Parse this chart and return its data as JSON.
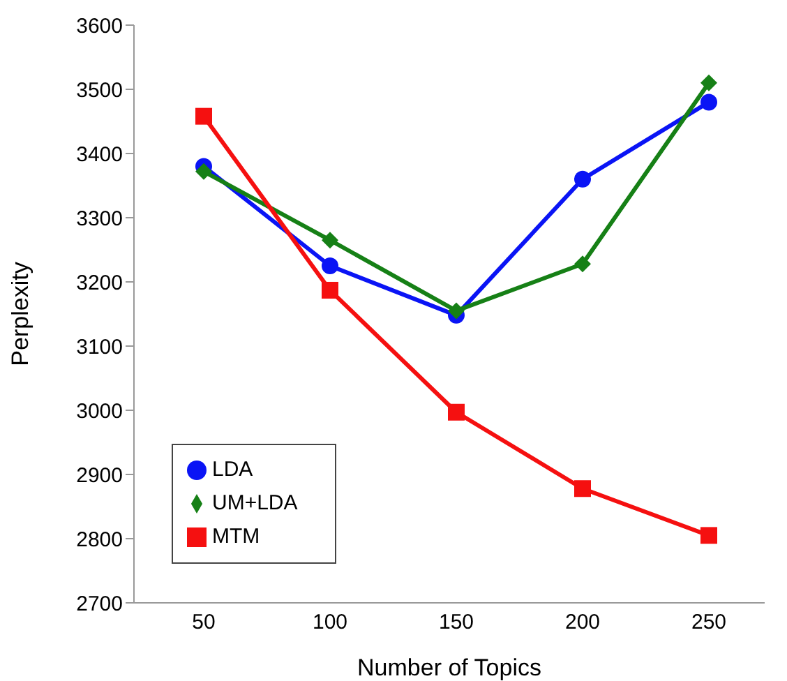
{
  "chart_data": {
    "type": "line",
    "xlabel": "Number of Topics",
    "ylabel": "Perplexity",
    "categories": [
      "50",
      "100",
      "150",
      "200",
      "250"
    ],
    "series": [
      {
        "name": "LDA",
        "color": "#0a14f5",
        "marker": "circle",
        "values": [
          3380,
          3225,
          3148,
          3360,
          3480
        ]
      },
      {
        "name": "UM+LDA",
        "color": "#168016",
        "marker": "diamond",
        "values": [
          3372,
          3265,
          3155,
          3228,
          3510
        ]
      },
      {
        "name": "MTM",
        "color": "#f51010",
        "marker": "square",
        "values": [
          3458,
          3187,
          2997,
          2878,
          2805
        ]
      }
    ],
    "ylim": [
      2700,
      3600
    ],
    "yticks": [
      2700,
      2800,
      2900,
      3000,
      3100,
      3200,
      3300,
      3400,
      3500,
      3600
    ],
    "grid": false,
    "legend": "bottom left"
  }
}
